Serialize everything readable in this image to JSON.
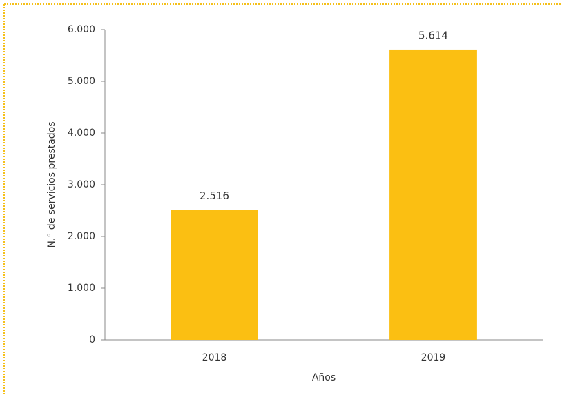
{
  "chart_data": {
    "type": "bar",
    "categories": [
      "2018",
      "2019"
    ],
    "values": [
      2516,
      5614
    ],
    "value_labels": [
      "2.516",
      "5.614"
    ],
    "color": "#fbbf12",
    "ylim": [
      0,
      6000
    ],
    "yticks": [
      0,
      {
        "value": 1000,
        "label": "1.000"
      },
      {
        "value": 2000,
        "label": "2.000"
      },
      {
        "value": 3000,
        "label": "3.000"
      },
      {
        "value": 4000,
        "label": "4.000"
      },
      {
        "value": 5000,
        "label": "5.000"
      },
      {
        "value": 6000,
        "label": "6.000"
      }
    ],
    "y_label": "N.° de servicios prestados",
    "x_label": "Años",
    "grid": false
  }
}
